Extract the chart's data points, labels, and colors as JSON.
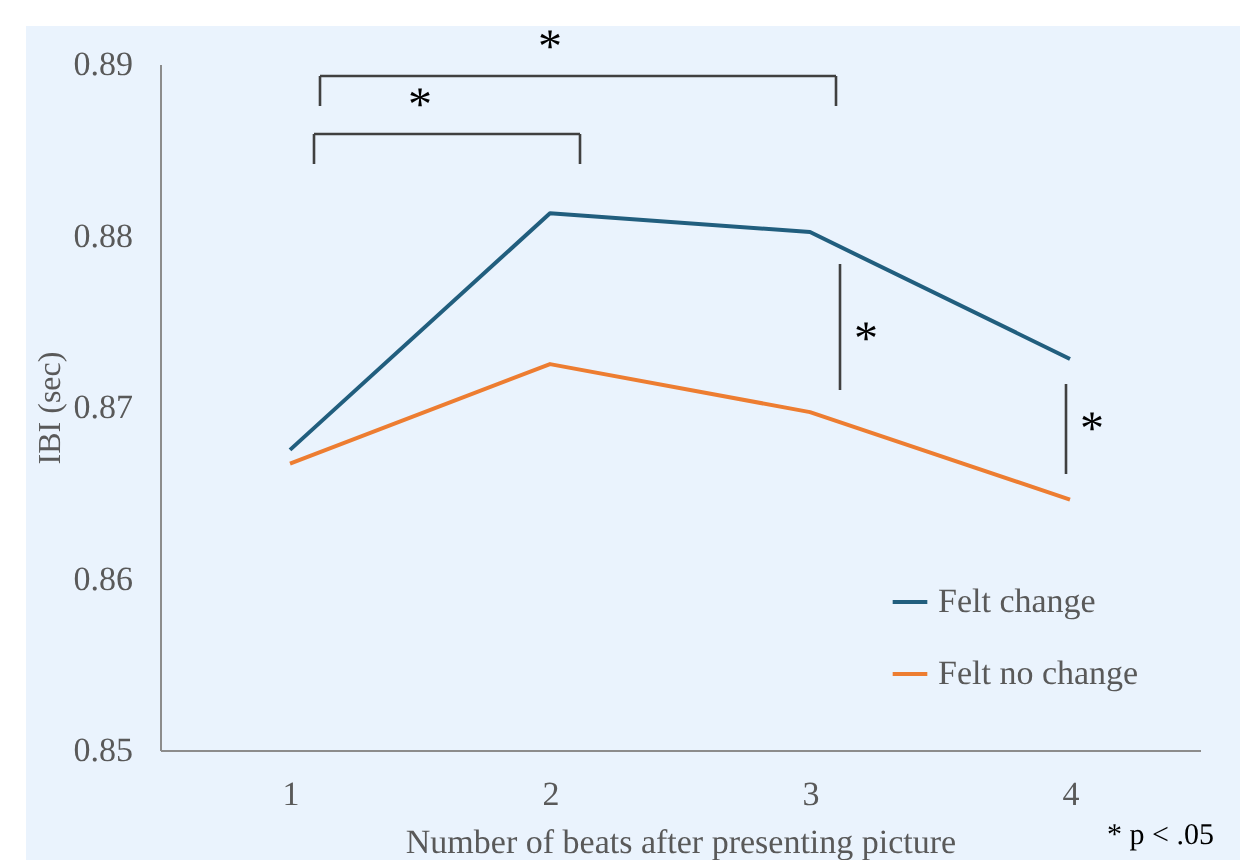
{
  "chart_data": {
    "type": "line",
    "xlabel": "Number of beats after presenting picture",
    "ylabel": "IBI (sec)",
    "categories": [
      "1",
      "2",
      "3",
      "4"
    ],
    "series": [
      {
        "name": "Felt change",
        "color": "#215e7e",
        "values": [
          0.8675,
          0.8813,
          0.8802,
          0.8728
        ]
      },
      {
        "name": "Felt no change",
        "color": "#ed7d31",
        "values": [
          0.8667,
          0.8725,
          0.8697,
          0.8646
        ]
      }
    ],
    "ylim": [
      0.85,
      0.89
    ],
    "yticks": [
      0.85,
      0.86,
      0.87,
      0.88,
      0.89
    ],
    "legend": "bottom right",
    "annotations": [
      "*",
      "*",
      "*",
      "*",
      "* p < .05"
    ]
  }
}
